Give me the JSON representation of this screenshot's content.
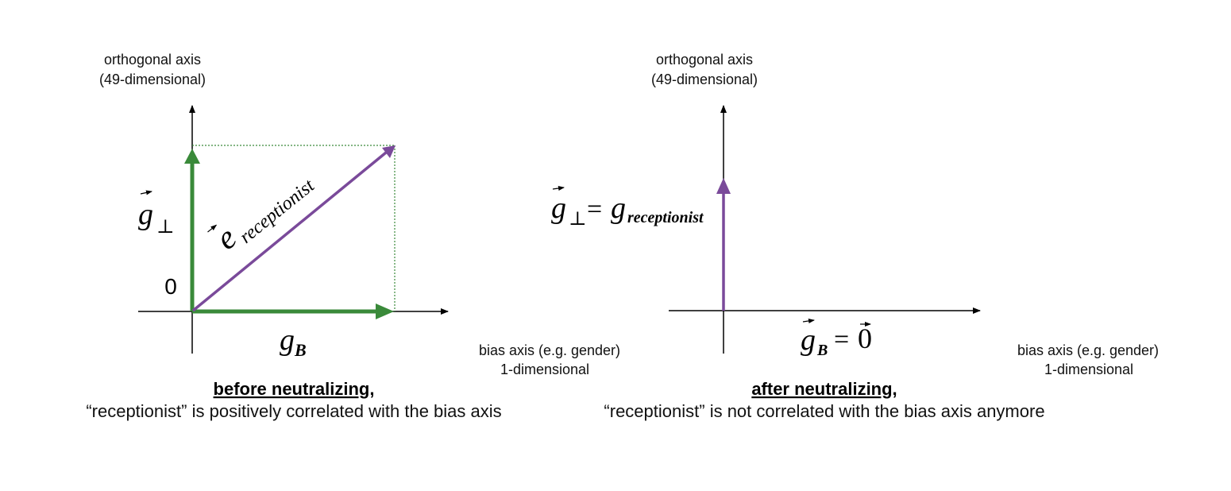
{
  "colors": {
    "green": "#3a8a3a",
    "purple": "#7a4a9a",
    "axis": "#000000"
  },
  "left_panel": {
    "orthogonal_axis_label": [
      "orthogonal axis",
      "(49-dimensional)"
    ],
    "bias_axis_label": [
      "bias axis (e.g. gender)",
      "1-dimensional"
    ],
    "origin_label": "0",
    "g_perp": {
      "base": "g",
      "sub": "⊥"
    },
    "e_receptionist": {
      "base": "e",
      "sub": "receptionist"
    },
    "g_b": {
      "base": "g",
      "sub": "B"
    },
    "caption_title": "before neutralizing,",
    "caption_text": "“receptionist” is positively correlated with the bias axis"
  },
  "right_panel": {
    "orthogonal_axis_label": [
      "orthogonal axis",
      "(49-dimensional)"
    ],
    "bias_axis_label": [
      "bias axis (e.g. gender)",
      "1-dimensional"
    ],
    "g_perp_equation": {
      "base": "g",
      "sub": "⊥",
      "equals": "=",
      "rhs_base": "g",
      "rhs_sub": "receptionist"
    },
    "g_b_equation": {
      "base": "g",
      "sub": "B",
      "equals": "=",
      "rhs": "0"
    },
    "caption_title": "after neutralizing,",
    "caption_text": "“receptionist” is not correlated with the bias axis anymore"
  }
}
